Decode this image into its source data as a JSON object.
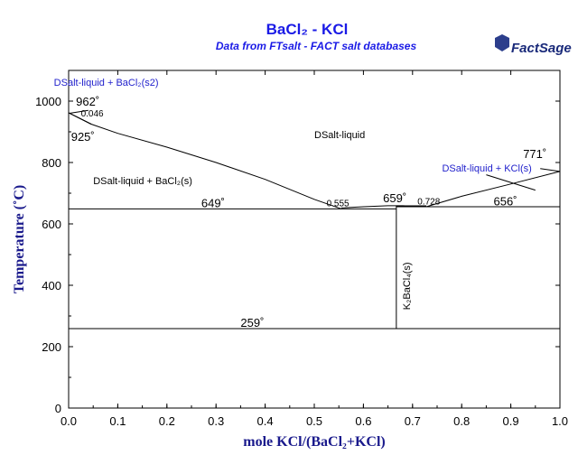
{
  "chart_data": {
    "type": "line",
    "title": "BaCl₂ - KCl",
    "subtitle": "Data from FTsalt - FACT salt databases",
    "logo": "FactSage",
    "xlabel": "mole KCl/(BaCl₂+KCl)",
    "ylabel": "Temperature (˚C)",
    "xlim": [
      0,
      1
    ],
    "ylim": [
      0,
      1100
    ],
    "xticks": [
      0.0,
      0.1,
      0.2,
      0.3,
      0.4,
      0.5,
      0.6,
      0.7,
      0.8,
      0.9,
      1.0
    ],
    "yticks": [
      0,
      200,
      400,
      600,
      800,
      1000
    ],
    "grid": false,
    "series": [
      {
        "points": [
          [
            0,
            962
          ],
          [
            0.046,
            925
          ],
          [
            0.1,
            895
          ],
          [
            0.2,
            850
          ],
          [
            0.3,
            800
          ],
          [
            0.4,
            745
          ],
          [
            0.5,
            680
          ],
          [
            0.555,
            649
          ]
        ]
      },
      {
        "points": [
          [
            0,
            962
          ],
          [
            0.046,
            925
          ]
        ]
      },
      {
        "points": [
          [
            0.555,
            652
          ],
          [
            0.6,
            656
          ],
          [
            0.65,
            659
          ],
          [
            0.68,
            659
          ],
          [
            0.728,
            656
          ]
        ]
      },
      {
        "points": [
          [
            0.728,
            656
          ],
          [
            0.8,
            690
          ],
          [
            0.9,
            730
          ],
          [
            1.0,
            771
          ]
        ]
      },
      {
        "points": [
          [
            0.96,
            780
          ],
          [
            1.0,
            771
          ]
        ]
      },
      {
        "points": [
          [
            0.85,
            760
          ],
          [
            0.95,
            710
          ]
        ]
      },
      {
        "points": [
          [
            0.0,
            960
          ],
          [
            0.04,
            970
          ]
        ]
      }
    ],
    "horizontal_lines": [
      {
        "y": 649,
        "x_from": 0,
        "x_to": 0.667
      },
      {
        "y": 656,
        "x_from": 0.667,
        "x_to": 1.0
      },
      {
        "y": 659,
        "x_from": 0.667,
        "x_to": 0.728
      },
      {
        "y": 259,
        "x_from": 0,
        "x_to": 1.0
      }
    ],
    "vertical_lines": [
      {
        "x": 0.667,
        "y_from": 259,
        "y_to": 659
      }
    ],
    "phase_labels": [
      {
        "text": "DSalt-liquid",
        "x": 0.5,
        "y": 880
      },
      {
        "text": "DSalt-liquid + BaCl₂(s)",
        "x": 0.05,
        "y": 730
      },
      {
        "text": "DSalt-liquid + BaCl₂(s2)",
        "x": -0.03,
        "y": 1050,
        "color": "#2222cc"
      },
      {
        "text": "DSalt-liquid + KCl(s)",
        "x": 0.76,
        "y": 770,
        "color": "#2222cc"
      },
      {
        "text": "K₂BaCl₄(s)",
        "x": 0.695,
        "y": 320,
        "rotate": true
      }
    ],
    "temperature_labels": [
      {
        "text": "962˚",
        "x": 0.015,
        "y": 985
      },
      {
        "text": "925˚",
        "x": 0.005,
        "y": 870
      },
      {
        "text": "649˚",
        "x": 0.27,
        "y": 655
      },
      {
        "text": "659˚",
        "x": 0.64,
        "y": 670
      },
      {
        "text": "656˚",
        "x": 0.865,
        "y": 660
      },
      {
        "text": "771˚",
        "x": 0.925,
        "y": 815
      },
      {
        "text": "259˚",
        "x": 0.35,
        "y": 265
      }
    ],
    "composition_labels": [
      {
        "text": "0.046",
        "x": 0.025,
        "y": 950
      },
      {
        "text": "0.555",
        "x": 0.525,
        "y": 658
      },
      {
        "text": "0.728",
        "x": 0.71,
        "y": 663
      }
    ]
  }
}
